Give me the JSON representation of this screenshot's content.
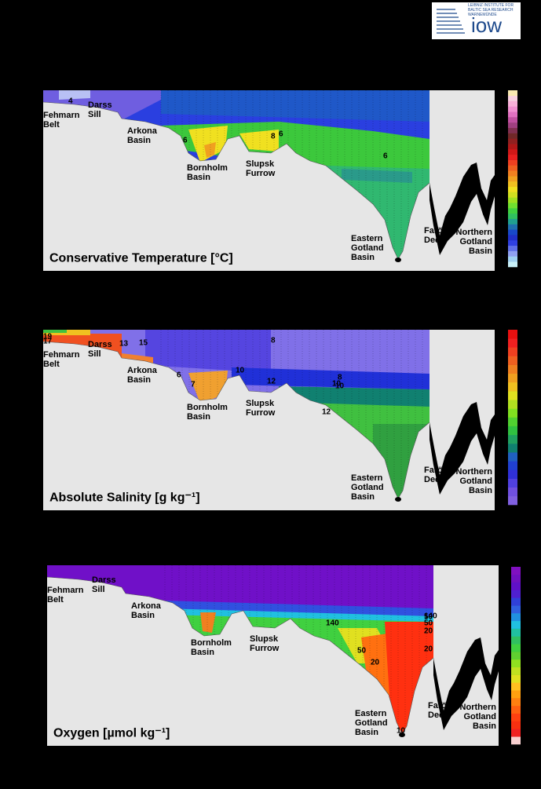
{
  "logo": {
    "lines": [
      "LEIBNIZ INSTITUTE FOR",
      "BALTIC SEA RESEARCH",
      "WARNEMÜNDE"
    ],
    "wordmark": "iow"
  },
  "panels": [
    {
      "title": "Conservative Temperature [°C]",
      "regions": [
        [
          "Fehmarn",
          "Belt"
        ],
        [
          "Darss",
          "Sill"
        ],
        [
          "Arkona",
          "Basin"
        ],
        [
          "Bornholm",
          "Basin"
        ],
        [
          "Slupsk",
          "Furrow"
        ],
        [
          "Eastern",
          "Gotland",
          "Basin"
        ],
        [
          "Farö",
          "Deep"
        ],
        [
          "Northern",
          "Gotland",
          "Basin"
        ]
      ],
      "contour_labels": [
        "4",
        "6",
        "8",
        "6",
        "6"
      ]
    },
    {
      "title": "Absolute Salinity [g kg⁻¹]",
      "regions": [
        [
          "Fehmarn",
          "Belt"
        ],
        [
          "Darss",
          "Sill"
        ],
        [
          "Arkona",
          "Basin"
        ],
        [
          "Bornholm",
          "Basin"
        ],
        [
          "Slupsk",
          "Furrow"
        ],
        [
          "Eastern",
          "Gotland",
          "Basin"
        ],
        [
          "Farö",
          "Deep"
        ],
        [
          "Northern",
          "Gotland",
          "Basin"
        ]
      ],
      "contour_labels": [
        "19",
        "17",
        "13",
        "15",
        "10",
        "6",
        "7",
        "10",
        "12",
        "8",
        "8",
        "10",
        "12"
      ]
    },
    {
      "title": "Oxygen [µmol kg⁻¹]",
      "regions": [
        [
          "Fehmarn",
          "Belt"
        ],
        [
          "Darss",
          "Sill"
        ],
        [
          "Arkona",
          "Basin"
        ],
        [
          "Bornholm",
          "Basin"
        ],
        [
          "Slupsk",
          "Furrow"
        ],
        [
          "Eastern",
          "Gotland",
          "Basin"
        ],
        [
          "Farö",
          "Deep"
        ],
        [
          "Northern",
          "Gotland",
          "Basin"
        ]
      ],
      "contour_labels": [
        "140",
        "140",
        "50",
        "20",
        "50",
        "20",
        "20",
        "50",
        "10"
      ]
    }
  ]
}
